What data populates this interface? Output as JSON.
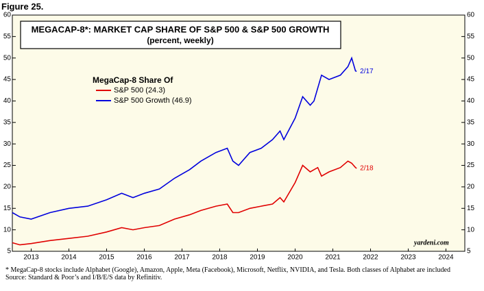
{
  "figure": "Figure 25.",
  "chart_data": {
    "type": "line",
    "title": "MEGACAP-8*: MARKET CAP SHARE OF S&P 500 & S&P 500 GROWTH",
    "subtitle": "(percent, weekly)",
    "legend_title": "MegaCap-8 Share Of",
    "x": [
      2013.0,
      2013.2,
      2013.5,
      2014.0,
      2014.5,
      2015.0,
      2015.5,
      2015.9,
      2016.2,
      2016.5,
      2016.9,
      2017.3,
      2017.7,
      2018.0,
      2018.4,
      2018.7,
      2018.85,
      2019.0,
      2019.3,
      2019.6,
      2019.9,
      2020.1,
      2020.2,
      2020.5,
      2020.7,
      2020.9,
      2021.0,
      2021.1,
      2021.2,
      2021.4,
      2021.7,
      2021.9,
      2022.0,
      2022.1,
      2022.13
    ],
    "series": [
      {
        "name": "S&P 500 (24.3)",
        "color": "#e00000",
        "label": "2/18",
        "values": [
          7,
          6.5,
          6.8,
          7.5,
          8,
          8.5,
          9.5,
          10.5,
          10,
          10.5,
          11,
          12.5,
          13.5,
          14.5,
          15.5,
          16,
          14,
          14,
          15,
          15.5,
          16,
          17.5,
          16.5,
          21,
          25,
          23.5,
          24,
          24.5,
          22.5,
          23.5,
          24.5,
          26,
          25.5,
          24.5,
          24.3
        ]
      },
      {
        "name": "S&P 500 Growth (46.9)",
        "color": "#0000dd",
        "label": "2/17",
        "values": [
          14,
          13,
          12.5,
          14,
          15,
          15.5,
          17,
          18.5,
          17.5,
          18.5,
          19.5,
          22,
          24,
          26,
          28,
          29,
          26,
          25,
          28,
          29,
          31,
          33,
          31,
          36,
          41,
          39,
          40,
          43,
          46,
          45,
          46,
          48,
          50,
          47,
          46.9
        ]
      }
    ],
    "xlim": [
      2013,
      2025
    ],
    "xticks": [
      {
        "value": 2013.5,
        "label": "2013"
      },
      {
        "value": 2014.5,
        "label": "2014"
      },
      {
        "value": 2015.5,
        "label": "2015"
      },
      {
        "value": 2016.5,
        "label": "2016"
      },
      {
        "value": 2017.5,
        "label": "2017"
      },
      {
        "value": 2018.5,
        "label": "2018"
      },
      {
        "value": 2019.5,
        "label": "2019"
      },
      {
        "value": 2020.5,
        "label": "2020"
      },
      {
        "value": 2021.5,
        "label": "2021"
      },
      {
        "value": 2022.5,
        "label": "2022"
      },
      {
        "value": 2023.5,
        "label": "2023"
      },
      {
        "value": 2024.5,
        "label": "2024"
      }
    ],
    "ylim": [
      5,
      60
    ],
    "yticks": [
      5,
      10,
      15,
      20,
      25,
      30,
      35,
      40,
      45,
      50,
      55,
      60
    ],
    "y2lim": [
      5,
      60
    ],
    "y2ticks": [
      5,
      10,
      15,
      20,
      25,
      30,
      35,
      40,
      45,
      50,
      55,
      60
    ],
    "source_mark": "yardeni.com"
  },
  "notes": {
    "footnote": "* MegaCap-8 stocks include Alphabet (Google), Amazon, Apple, Meta (Facebook), Microsoft, Netflix, NVIDIA, and Tesla. Both classes of Alphabet are included",
    "source": "Source: Standard & Poor’s and I/B/E/S data by Refinitiv."
  }
}
